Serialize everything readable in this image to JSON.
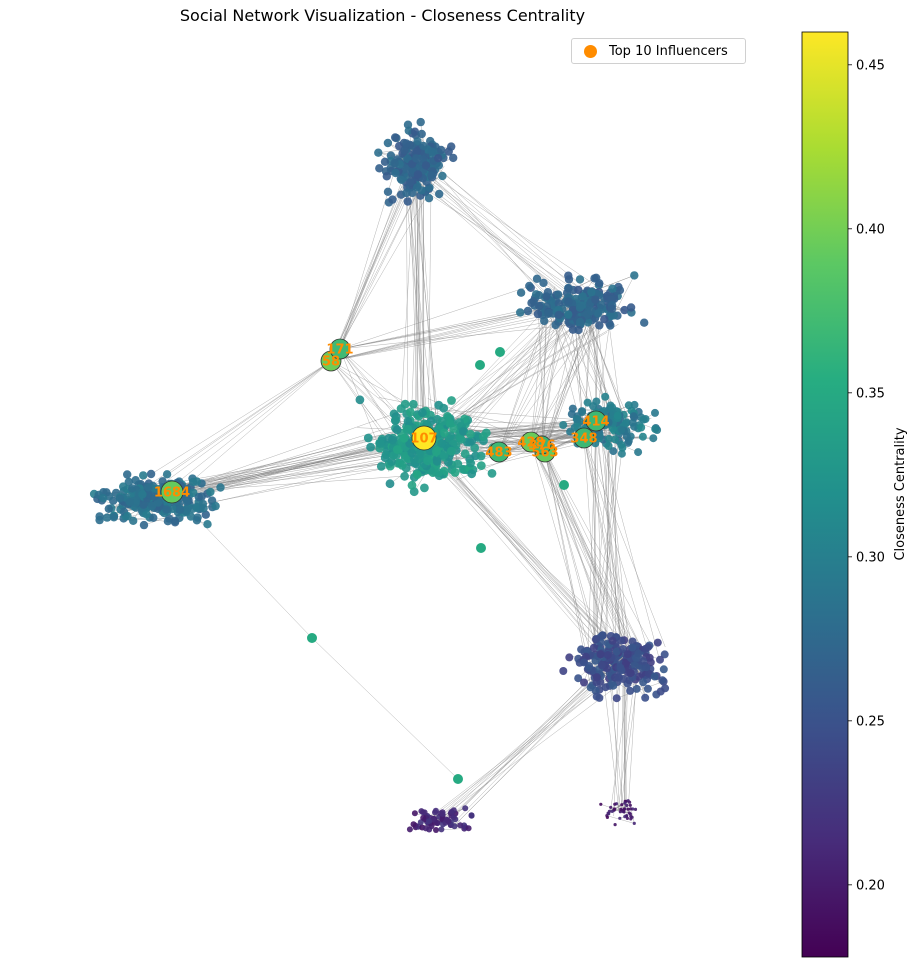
{
  "chart_data": {
    "type": "scatter",
    "title": "Social Network Visualization - Closeness Centrality",
    "legend": {
      "label": "Top 10 Influencers",
      "color": "#ff8c00",
      "placement": "top-right"
    },
    "colorbar": {
      "label": "Closeness Centrality",
      "min": 0.178,
      "max": 0.46,
      "ticks": [
        "0.20",
        "0.25",
        "0.30",
        "0.35",
        "0.40",
        "0.45"
      ],
      "colormap": "viridis"
    },
    "top_influencers": [
      {
        "id": "107",
        "closeness": 0.46
      },
      {
        "id": "58",
        "closeness": 0.397
      },
      {
        "id": "428",
        "closeness": 0.395
      },
      {
        "id": "563",
        "closeness": 0.393
      },
      {
        "id": "1684",
        "closeness": 0.393
      },
      {
        "id": "171",
        "closeness": 0.37
      },
      {
        "id": "348",
        "closeness": 0.369
      },
      {
        "id": "483",
        "closeness": 0.369
      },
      {
        "id": "414",
        "closeness": 0.369
      },
      {
        "id": "376",
        "closeness": 0.366
      }
    ],
    "grid": false
  }
}
